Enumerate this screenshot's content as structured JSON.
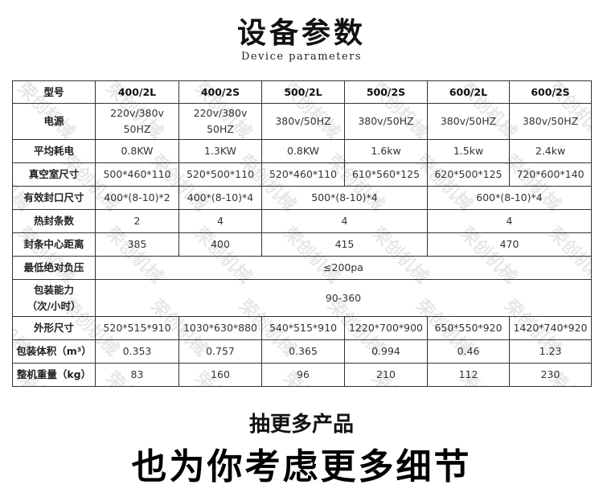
{
  "title": "设备参数",
  "subtitle": "Device parameters",
  "watermark": "荣创机械",
  "table": {
    "header": [
      "型号",
      "400/2L",
      "400/2S",
      "500/2L",
      "500/2S",
      "600/2L",
      "600/2S"
    ],
    "power": {
      "label": "电源",
      "cells": [
        "220v/380v\n50HZ",
        "220v/380v\n50HZ",
        "380v/50HZ",
        "380v/50HZ",
        "380v/50HZ",
        "380v/50HZ"
      ]
    },
    "consumption": {
      "label": "平均耗电",
      "cells": [
        "0.8KW",
        "1.3KW",
        "0.8KW",
        "1.6kw",
        "1.5kw",
        "2.4kw"
      ]
    },
    "chamber": {
      "label": "真空室尺寸",
      "cells": [
        "500*460*110",
        "520*500*110",
        "520*460*110",
        "610*560*125",
        "620*500*125",
        "720*600*140"
      ]
    },
    "seal_size": {
      "label": "有效封口尺寸",
      "cells": [
        "400*(8-10)*2",
        "400*(8-10)*4",
        "500*(8-10)*4",
        "600*(8-10)*4"
      ]
    },
    "seal_count": {
      "label": "热封条数",
      "cells": [
        "2",
        "4",
        "4",
        "4"
      ]
    },
    "seal_distance": {
      "label": "封条中心距离",
      "cells": [
        "385",
        "400",
        "415",
        "470"
      ]
    },
    "min_pressure": {
      "label": "最低绝对负压",
      "value": "≤200pa"
    },
    "capacity": {
      "label": "包装能力\n（次/小时）",
      "value": "90-360"
    },
    "dimensions": {
      "label": "外形尺寸",
      "cells": [
        "520*515*910",
        "1030*630*880",
        "540*515*910",
        "1220*700*900",
        "650*550*920",
        "1420*740*920"
      ]
    },
    "volume": {
      "label": "包装体积（m³）",
      "cells": [
        "0.353",
        "0.757",
        "0.365",
        "0.994",
        "0.46",
        "1.23"
      ]
    },
    "weight": {
      "label": "整机重量（kg）",
      "cells": [
        "83",
        "160",
        "96",
        "210",
        "112",
        "230"
      ]
    }
  },
  "footer": {
    "line1": "抽更多产品",
    "line2": "也为你考虑更多细节"
  }
}
